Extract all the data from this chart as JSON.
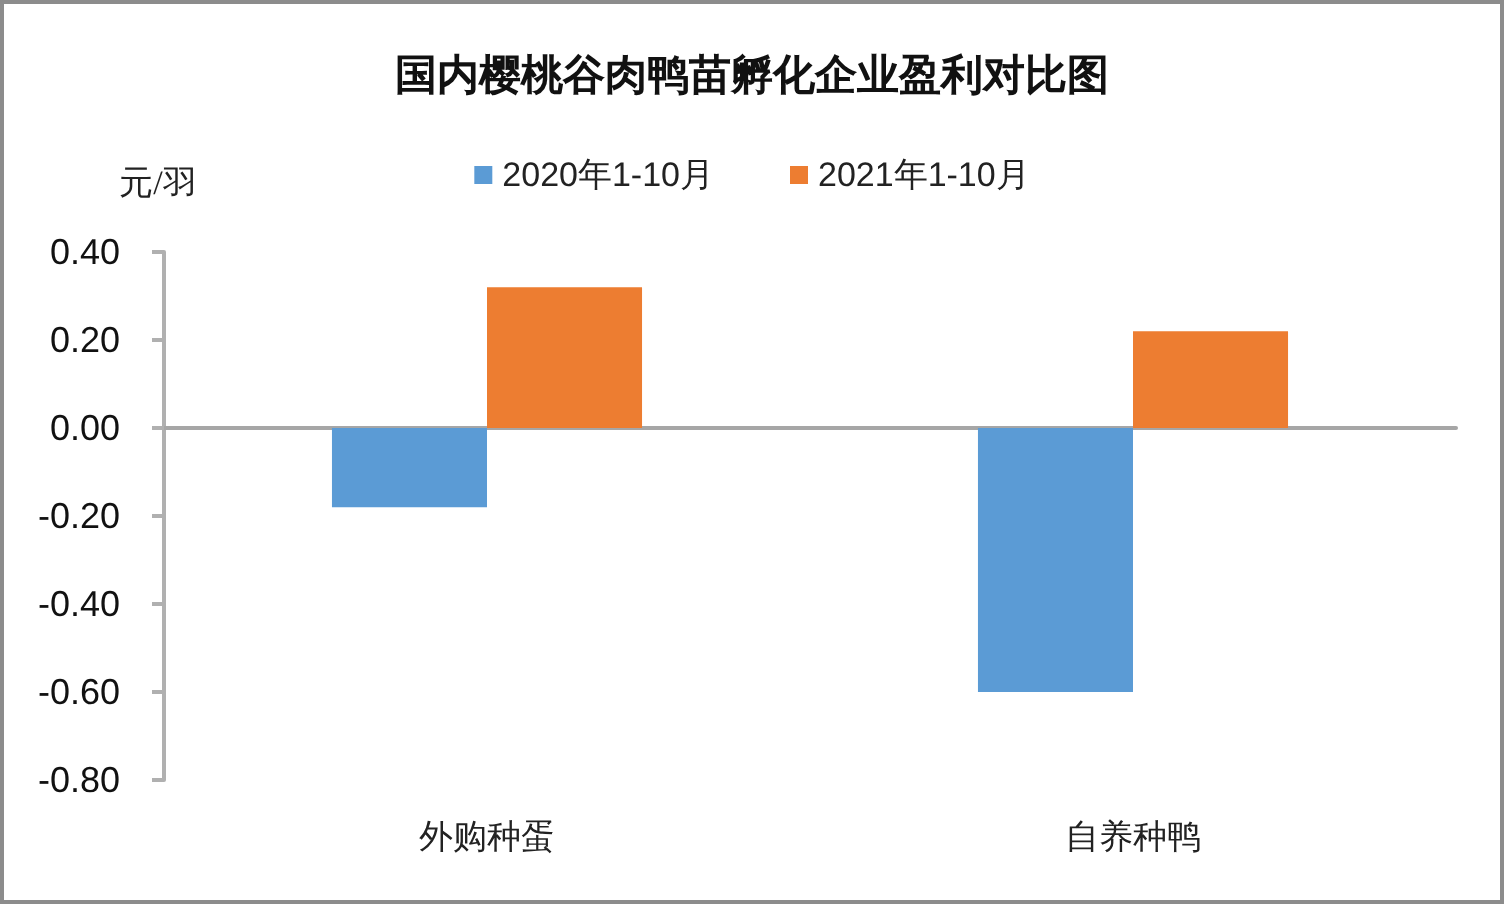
{
  "chart_data": {
    "type": "bar",
    "title": "国内樱桃谷肉鸭苗孵化企业盈利对比图",
    "ylabel": "元/羽",
    "categories": [
      "外购种蛋",
      "自养种鸭"
    ],
    "series": [
      {
        "name": "2020年1-10月",
        "color": "#5b9bd5",
        "values": [
          -0.18,
          -0.6
        ]
      },
      {
        "name": "2021年1-10月",
        "color": "#ed7d31",
        "values": [
          0.32,
          0.22
        ]
      }
    ],
    "ylim": [
      -0.8,
      0.4
    ],
    "yticks": [
      {
        "value": -0.8,
        "label": "-0.80"
      },
      {
        "value": -0.6,
        "label": "-0.60"
      },
      {
        "value": -0.4,
        "label": "-0.40"
      },
      {
        "value": -0.2,
        "label": "-0.20"
      },
      {
        "value": 0,
        "label": "0.00"
      },
      {
        "value": 0.2,
        "label": "0.20"
      },
      {
        "value": 0.4,
        "label": "0.40"
      }
    ],
    "legend": "top"
  }
}
